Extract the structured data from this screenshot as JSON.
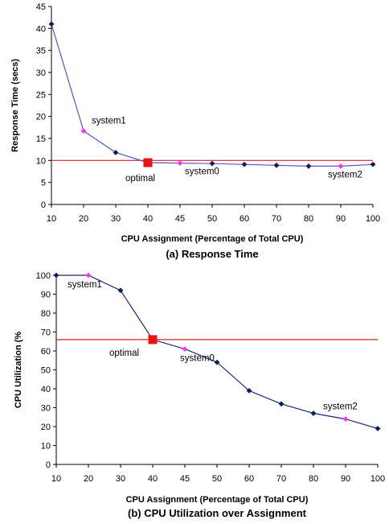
{
  "chart_data": [
    {
      "type": "line",
      "caption": "(a) Response Time",
      "xlabel": "CPU Assignment (Percentage of Total CPU)",
      "ylabel": "Response Time (secs)",
      "x_ticks": [
        10,
        20,
        30,
        40,
        45,
        50,
        60,
        70,
        80,
        90,
        100
      ],
      "ylim": [
        0,
        45
      ],
      "y_ticks": [
        0,
        5,
        10,
        15,
        20,
        25,
        30,
        35,
        40,
        45
      ],
      "series": [
        {
          "values": [
            41,
            16.7,
            11.8,
            9.5,
            9.4,
            9.3,
            9.1,
            8.9,
            8.7,
            8.7,
            9.1
          ]
        }
      ],
      "reference_line": 10,
      "highlighted": [
        {
          "x": 20,
          "label": "system1"
        },
        {
          "x": 45,
          "label": "system0"
        },
        {
          "x": 90,
          "label": "system2"
        }
      ],
      "optimal": {
        "x": 40,
        "y": 9.5,
        "label": "optimal"
      },
      "colors": {
        "line": "#5555cc",
        "marker": "#0a1f5c",
        "highlight": "#ff33ff",
        "reference": "#dd2222",
        "optimal": "#ee1111"
      }
    },
    {
      "type": "line",
      "caption": "(b) CPU Utilization over Assignment",
      "xlabel": "CPU Assignment (Percentage of Total CPU)",
      "ylabel": "CPU Utilization (%",
      "x_ticks": [
        10,
        20,
        30,
        40,
        45,
        50,
        60,
        70,
        80,
        90,
        100
      ],
      "ylim": [
        0,
        100
      ],
      "y_ticks": [
        0,
        10,
        20,
        30,
        40,
        50,
        60,
        70,
        80,
        90,
        100
      ],
      "series": [
        {
          "values": [
            100,
            100,
            92,
            66,
            61,
            54,
            39,
            32,
            27,
            24,
            19
          ]
        }
      ],
      "reference_line": 66,
      "highlighted": [
        {
          "x": 20,
          "label": "system1"
        },
        {
          "x": 45,
          "label": "system0"
        },
        {
          "x": 90,
          "label": "system2"
        }
      ],
      "optimal": {
        "x": 40,
        "y": 66,
        "label": "optimal"
      },
      "colors": {
        "line": "#1a237e",
        "marker": "#0a1f5c",
        "highlight": "#ff33ff",
        "reference": "#dd2222",
        "optimal": "#ee1111"
      }
    }
  ]
}
